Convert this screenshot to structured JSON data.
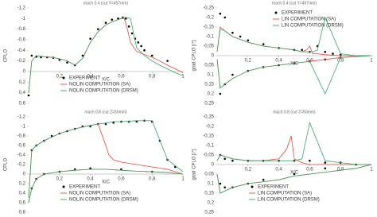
{
  "chart_data": [
    {
      "type": "line",
      "title": "mach 0.4 (cut Y=457mm)",
      "y_label": "CPLO",
      "x_label": "X/C",
      "legend": "lower left",
      "xlim": [
        0,
        1
      ],
      "xticks": [
        {
          "value": 0.2,
          "label": "0,2"
        },
        {
          "value": 0.4,
          "label": "0,4"
        },
        {
          "value": 0.6,
          "label": "0,6"
        },
        {
          "value": 0.8,
          "label": "0,8"
        },
        1
      ],
      "ylim": [
        0.6,
        -1.2
      ],
      "yticks": [
        {
          "value": -1.2,
          "label": "-1,2"
        },
        -1,
        {
          "value": -0.8,
          "label": "-0,8"
        },
        {
          "value": -0.6,
          "label": "-0,6"
        },
        {
          "value": -0.4,
          "label": "-0,4"
        },
        {
          "value": -0.2,
          "label": "-0,2"
        },
        0,
        {
          "value": 0.2,
          "label": "0,2"
        },
        {
          "value": 0.4,
          "label": "0,4"
        },
        {
          "value": 0.6,
          "label": "0,6"
        }
      ],
      "series": [
        {
          "name": "EXPERIMENT",
          "color": "#000000",
          "style": "points",
          "x": [
            0,
            0.02,
            0.05,
            0.08,
            0.12,
            0.16,
            0.2,
            0.25,
            0.3,
            0.35,
            0.4,
            0.45,
            0.5,
            0.54,
            0.58,
            0.61,
            0.63,
            0.65,
            0.67,
            0.69,
            0.71,
            0.73,
            0.75,
            0.8,
            0.9
          ],
          "values": [
            0.45,
            -0.3,
            -0.28,
            -0.27,
            -0.27,
            -0.26,
            -0.22,
            -0.17,
            -0.12,
            -0.3,
            -0.62,
            -0.8,
            -0.92,
            -0.98,
            -1.0,
            -1.02,
            -1.0,
            -0.85,
            -0.72,
            -0.62,
            -0.55,
            -0.48,
            -0.4,
            -0.3,
            -0.2
          ]
        },
        {
          "name": "NOLIN COMPUTATION (SA)",
          "color": "#e8493c",
          "style": "line",
          "x": [
            0,
            0.02,
            0.05,
            0.1,
            0.15,
            0.2,
            0.25,
            0.3,
            0.35,
            0.4,
            0.45,
            0.5,
            0.55,
            0.6,
            0.62,
            0.64,
            0.66,
            0.7,
            0.75,
            0.8,
            0.85,
            0.9,
            0.95,
            1.0
          ],
          "values": [
            0.4,
            -0.2,
            -0.3,
            -0.28,
            -0.27,
            -0.24,
            -0.2,
            -0.12,
            -0.25,
            -0.55,
            -0.75,
            -0.88,
            -0.95,
            -1.0,
            -1.0,
            -0.8,
            -0.55,
            -0.38,
            -0.32,
            -0.27,
            -0.2,
            -0.12,
            -0.05,
            0.02
          ]
        },
        {
          "name": "NOLIN COMPUTATION (DRSM)",
          "color": "#3aa66a",
          "style": "line",
          "x": [
            0,
            0.02,
            0.05,
            0.1,
            0.15,
            0.2,
            0.25,
            0.3,
            0.35,
            0.4,
            0.45,
            0.5,
            0.55,
            0.6,
            0.62,
            0.64,
            0.66,
            0.7,
            0.75,
            0.8,
            0.85,
            0.9,
            0.95,
            1.0
          ],
          "values": [
            0.4,
            -0.2,
            -0.3,
            -0.28,
            -0.27,
            -0.24,
            -0.2,
            -0.12,
            -0.25,
            -0.55,
            -0.75,
            -0.88,
            -0.95,
            -1.0,
            -1.02,
            -1.02,
            -1.0,
            -0.45,
            -0.3,
            -0.2,
            -0.12,
            -0.05,
            0.02,
            0.08
          ]
        }
      ]
    },
    {
      "type": "line",
      "title": "mach 0.4 (cut Y=457mm)",
      "y_label": "grad CPLO [/°]",
      "x_label": "X/C",
      "legend": "upper center",
      "xlim": [
        0,
        1
      ],
      "xticks": [
        {
          "value": 0.2,
          "label": "0,2"
        },
        {
          "value": 0.4,
          "label": "0,4"
        },
        {
          "value": 0.6,
          "label": "0,6"
        },
        {
          "value": 0.8,
          "label": "0,8"
        },
        1
      ],
      "ylim": [
        0.25,
        -0.25
      ],
      "yticks": [
        {
          "value": -0.25,
          "label": "-0,25"
        },
        {
          "value": -0.2,
          "label": "-0,2"
        },
        {
          "value": -0.15,
          "label": "-0,15"
        },
        {
          "value": -0.1,
          "label": "-0,1"
        },
        {
          "value": -0.05,
          "label": "-0,05"
        },
        0,
        {
          "value": 0.05,
          "label": "0,05"
        },
        {
          "value": 0.1,
          "label": "0,1"
        },
        {
          "value": 0.15,
          "label": "0,15"
        },
        {
          "value": 0.2,
          "label": "0,2"
        },
        {
          "value": 0.25,
          "label": "0,25"
        }
      ],
      "series": [
        {
          "name": "EXPERIMENT",
          "color": "#000000",
          "style": "points",
          "x": [
            0.02,
            0.05,
            0.1,
            0.15,
            0.2,
            0.3,
            0.4,
            0.5,
            0.55,
            0.6,
            0.65,
            0.7,
            0.75,
            0.8,
            0.02,
            0.05,
            0.1,
            0.2,
            0.3,
            0.4,
            0.5,
            0.6,
            0.7,
            0.8
          ],
          "values": [
            -0.22,
            -0.2,
            -0.12,
            -0.1,
            -0.08,
            -0.06,
            -0.04,
            -0.03,
            -0.03,
            -0.02,
            -0.05,
            -0.02,
            -0.01,
            -0.005,
            0.2,
            0.15,
            0.1,
            0.08,
            0.06,
            0.05,
            0.04,
            0.03,
            0.02,
            0.01
          ]
        },
        {
          "name": "LIN COMPUTATION (SA)",
          "color": "#e8493c",
          "style": "line",
          "x": [
            0,
            0.02,
            0.05,
            0.1,
            0.2,
            0.3,
            0.4,
            0.5,
            0.55,
            0.58,
            0.6,
            0.62,
            0.65,
            0.7,
            0.8,
            0.9,
            1.0,
            null,
            0,
            0.02,
            0.05,
            0.1,
            0.2,
            0.3,
            0.4,
            0.5,
            0.6,
            0.7,
            0.8,
            0.9,
            1.0
          ],
          "values": [
            -0.02,
            -0.15,
            -0.13,
            -0.1,
            -0.07,
            -0.05,
            -0.04,
            -0.03,
            -0.02,
            -0.03,
            -0.05,
            -0.01,
            -0.01,
            -0.005,
            0,
            0,
            0,
            null,
            0.02,
            0.17,
            0.15,
            0.12,
            0.08,
            0.06,
            0.05,
            0.04,
            0.03,
            0.02,
            0.01,
            0.005,
            0
          ]
        },
        {
          "name": "LIN COMPUTATION (DRSM)",
          "color": "#3aa66a",
          "style": "line",
          "x": [
            0,
            0.02,
            0.05,
            0.1,
            0.2,
            0.3,
            0.4,
            0.5,
            0.55,
            0.58,
            0.6,
            0.62,
            0.65,
            0.7,
            0.8,
            0.9,
            1.0,
            null,
            0,
            0.02,
            0.05,
            0.1,
            0.2,
            0.3,
            0.4,
            0.5,
            0.6,
            0.7,
            0.8,
            0.9,
            1.0
          ],
          "values": [
            -0.02,
            -0.14,
            -0.13,
            -0.1,
            -0.07,
            -0.05,
            -0.04,
            -0.03,
            -0.02,
            -0.02,
            -0.02,
            -0.02,
            -0.03,
            -0.2,
            -0.01,
            0,
            0,
            null,
            0.02,
            0.17,
            0.15,
            0.12,
            0.08,
            0.06,
            0.05,
            0.04,
            0.03,
            0.2,
            0.01,
            0.005,
            0
          ]
        }
      ]
    },
    {
      "type": "line",
      "title": "mach 0.8 (cut Z=50mm)",
      "y_label": "CPLO",
      "x_label": "X/C",
      "legend": "lower left",
      "xlim": [
        0,
        1
      ],
      "xticks": [
        {
          "value": 0.2,
          "label": "0,2"
        },
        {
          "value": 0.4,
          "label": "0,4"
        },
        {
          "value": 0.6,
          "label": "0,6"
        },
        {
          "value": 0.8,
          "label": "0,8"
        },
        1
      ],
      "ylim": [
        0.8,
        -1.2
      ],
      "yticks": [
        {
          "value": -1.2,
          "label": "-1,2"
        },
        -1,
        {
          "value": -0.8,
          "label": "-0,8"
        },
        {
          "value": -0.6,
          "label": "-0,6"
        },
        {
          "value": -0.4,
          "label": "-0,4"
        },
        {
          "value": -0.2,
          "label": "-0,2"
        },
        0,
        {
          "value": 0.2,
          "label": "0,2"
        },
        {
          "value": 0.4,
          "label": "0,4"
        },
        {
          "value": 0.6,
          "label": "0,6"
        },
        {
          "value": 0.8,
          "label": "0,8"
        }
      ],
      "series": [
        {
          "name": "EXPERIMENT",
          "color": "#000000",
          "style": "points",
          "x": [
            0.02,
            0.05,
            0.1,
            0.15,
            0.2,
            0.25,
            0.3,
            0.35,
            0.4,
            0.45,
            0.5,
            0.55,
            0.6,
            0.65,
            0.7,
            0.75,
            0.8,
            0.85,
            0.9,
            0.95,
            0.02,
            0.05,
            0.1,
            0.2,
            0.3,
            0.4,
            0.6,
            0.8
          ],
          "values": [
            -0.5,
            -0.6,
            -0.7,
            -0.8,
            -0.85,
            -0.9,
            -0.95,
            -1.0,
            -1.0,
            -1.05,
            -1.05,
            -1.08,
            -1.1,
            -1.1,
            -1.1,
            -1.12,
            -1.1,
            -0.7,
            -0.3,
            -0.15,
            0.3,
            0.1,
            0.0,
            -0.05,
            -0.1,
            -0.12,
            -0.1,
            -0.05
          ]
        },
        {
          "name": "NOLIN COMPUTATION (SA)",
          "color": "#e8493c",
          "style": "line",
          "x": [
            0,
            0.02,
            0.05,
            0.1,
            0.2,
            0.3,
            0.4,
            0.45,
            0.5,
            0.52,
            0.55,
            0.6,
            0.7,
            0.8,
            0.9,
            1.0,
            null,
            0,
            0.02,
            0.05,
            0.1,
            0.2,
            0.3,
            0.4,
            0.5,
            0.6,
            0.7,
            0.8,
            0.9,
            1.0
          ],
          "values": [
            0.5,
            -0.5,
            -0.6,
            -0.7,
            -0.85,
            -0.95,
            -1.02,
            -1.05,
            -0.6,
            -0.4,
            -0.3,
            -0.25,
            -0.2,
            -0.15,
            -0.1,
            0,
            null,
            0.6,
            0.3,
            0.1,
            0,
            -0.05,
            -0.08,
            -0.1,
            -0.1,
            -0.08,
            -0.06,
            -0.05,
            -0.03,
            0
          ]
        },
        {
          "name": "NOLIN COMPUTATION (DRSM)",
          "color": "#3aa66a",
          "style": "line",
          "x": [
            0,
            0.02,
            0.05,
            0.1,
            0.2,
            0.3,
            0.4,
            0.45,
            0.5,
            0.52,
            0.55,
            0.6,
            0.7,
            0.8,
            0.9,
            1.0,
            null,
            0,
            0.02,
            0.05,
            0.1,
            0.2,
            0.3,
            0.4,
            0.5,
            0.6,
            0.7,
            0.8,
            0.9,
            1.0
          ],
          "values": [
            0.5,
            -0.5,
            -0.6,
            -0.7,
            -0.85,
            -0.95,
            -1.02,
            -1.05,
            -1.07,
            -1.08,
            -1.1,
            -1.1,
            -1.12,
            -1.12,
            -0.3,
            -0.05,
            null,
            0.6,
            0.3,
            0.1,
            0,
            -0.05,
            -0.08,
            -0.1,
            -0.1,
            -0.08,
            -0.06,
            -0.05,
            -0.03,
            0
          ]
        }
      ]
    },
    {
      "type": "line",
      "title": "mach 0.8 (cut Z=50mm)",
      "y_label": "grad CPLO [/°]",
      "x_label": "X/C",
      "legend": "lower left",
      "xlim": [
        0,
        1
      ],
      "xticks": [
        {
          "value": 0.2,
          "label": "0,2"
        },
        {
          "value": 0.4,
          "label": "0,4"
        },
        {
          "value": 0.6,
          "label": "0,6"
        },
        {
          "value": 0.8,
          "label": "0,8"
        },
        1
      ],
      "ylim": [
        0.25,
        -0.25
      ],
      "yticks": [
        {
          "value": -0.25,
          "label": "-0,25"
        },
        {
          "value": -0.2,
          "label": "-0,2"
        },
        {
          "value": -0.15,
          "label": "-0,15"
        },
        {
          "value": -0.1,
          "label": "-0,1"
        },
        {
          "value": -0.05,
          "label": "-0,05"
        },
        0,
        {
          "value": 0.05,
          "label": "0,05"
        },
        {
          "value": 0.1,
          "label": "0,1"
        },
        {
          "value": 0.15,
          "label": "0,15"
        },
        {
          "value": 0.2,
          "label": "0,2"
        },
        {
          "value": 0.25,
          "label": "0,25"
        }
      ],
      "series": [
        {
          "name": "EXPERIMENT",
          "color": "#000000",
          "style": "points",
          "x": [
            0.02,
            0.05,
            0.1,
            0.2,
            0.3,
            0.4,
            0.5,
            0.6,
            0.7,
            0.8,
            0.9,
            0.02,
            0.05,
            0.1,
            0.2,
            0.3,
            0.5,
            0.7
          ],
          "values": [
            -0.05,
            -0.03,
            -0.02,
            -0.02,
            -0.02,
            -0.02,
            -0.02,
            -0.02,
            -0.01,
            -0.01,
            0,
            0.1,
            0.12,
            0.12,
            0.1,
            0.08,
            0.05,
            0.02
          ]
        },
        {
          "name": "LIN COMPUTATION (SA)",
          "color": "#e8493c",
          "style": "line",
          "x": [
            0,
            0.02,
            0.1,
            0.2,
            0.3,
            0.4,
            0.45,
            0.48,
            0.5,
            0.55,
            0.6,
            0.7,
            0.8,
            0.9,
            1.0,
            null,
            0,
            0.02,
            0.1,
            0.2,
            0.3,
            0.4,
            0.5,
            0.6,
            0.7,
            0.8,
            0.9,
            1.0
          ],
          "values": [
            -0.02,
            -0.05,
            -0.03,
            -0.02,
            -0.02,
            -0.03,
            -0.08,
            -0.15,
            -0.03,
            -0.01,
            0,
            0,
            0,
            0,
            0,
            null,
            0.05,
            0.15,
            0.12,
            0.1,
            0.09,
            0.08,
            0.06,
            0.05,
            0.04,
            0.03,
            0.02,
            0
          ]
        },
        {
          "name": "LIN COMPUTATION (DRSM)",
          "color": "#3aa66a",
          "style": "line",
          "x": [
            0,
            0.02,
            0.1,
            0.2,
            0.3,
            0.4,
            0.45,
            0.48,
            0.5,
            0.55,
            0.6,
            0.7,
            0.8,
            0.9,
            1.0,
            null,
            0,
            0.02,
            0.1,
            0.2,
            0.3,
            0.4,
            0.5,
            0.6,
            0.7,
            0.8,
            0.9,
            1.0
          ],
          "values": [
            -0.02,
            -0.05,
            -0.03,
            -0.02,
            -0.02,
            -0.02,
            -0.02,
            -0.02,
            -0.02,
            -0.03,
            -0.22,
            -0.02,
            -0.01,
            0,
            0,
            null,
            0.05,
            0.15,
            0.12,
            0.1,
            0.09,
            0.08,
            0.06,
            0.05,
            0.04,
            0.03,
            0.02,
            0
          ]
        }
      ]
    }
  ]
}
